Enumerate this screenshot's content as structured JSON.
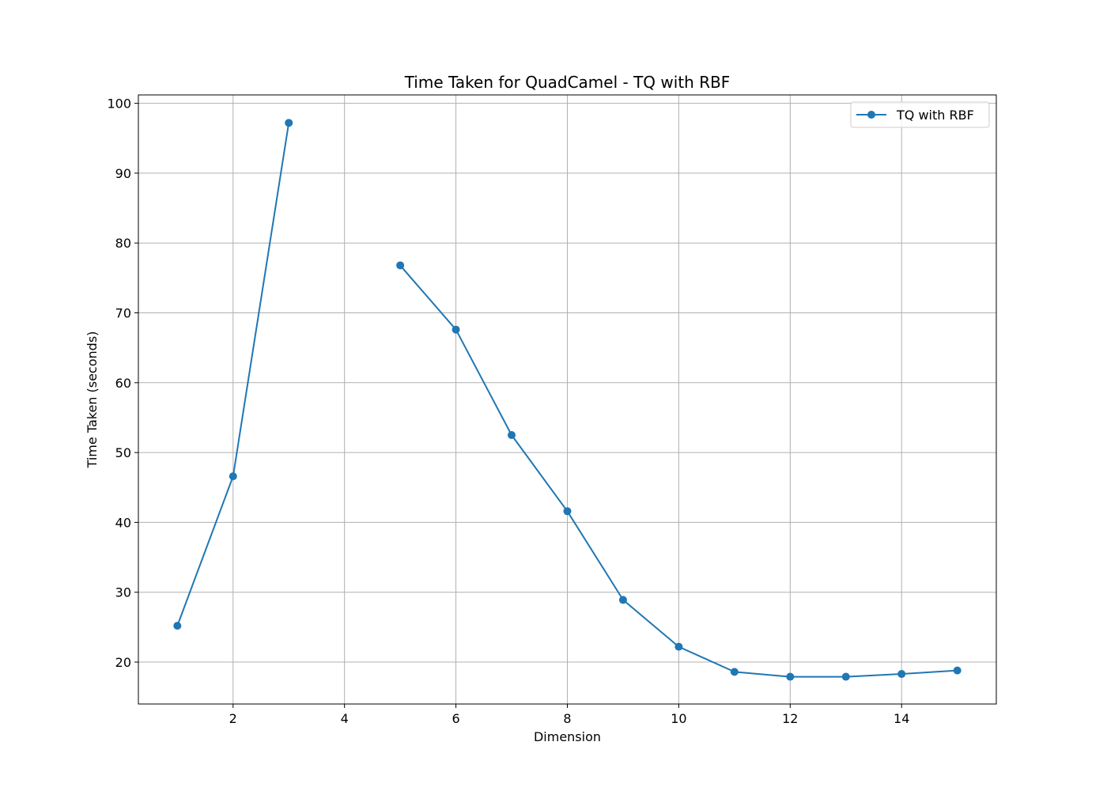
{
  "chart_data": {
    "type": "line",
    "title": "Time Taken for QuadCamel - TQ with RBF",
    "xlabel": "Dimension",
    "ylabel": "Time Taken (seconds)",
    "xlim": [
      0.3,
      15.7
    ],
    "ylim": [
      14.0,
      101.2
    ],
    "xticks": [
      2,
      4,
      6,
      8,
      10,
      12,
      14
    ],
    "yticks": [
      20,
      30,
      40,
      50,
      60,
      70,
      80,
      90,
      100
    ],
    "grid": true,
    "legend_position": "top-right",
    "series": [
      {
        "name": "TQ with RBF",
        "color": "#1f77b4",
        "marker": "circle",
        "x": [
          1,
          2,
          3,
          4,
          5,
          6,
          7,
          8,
          9,
          10,
          11,
          12,
          13,
          14,
          15
        ],
        "y": [
          25.2,
          46.6,
          97.2,
          null,
          76.8,
          67.6,
          52.5,
          41.6,
          28.9,
          22.2,
          18.6,
          17.9,
          17.9,
          18.3,
          18.8
        ]
      }
    ]
  }
}
